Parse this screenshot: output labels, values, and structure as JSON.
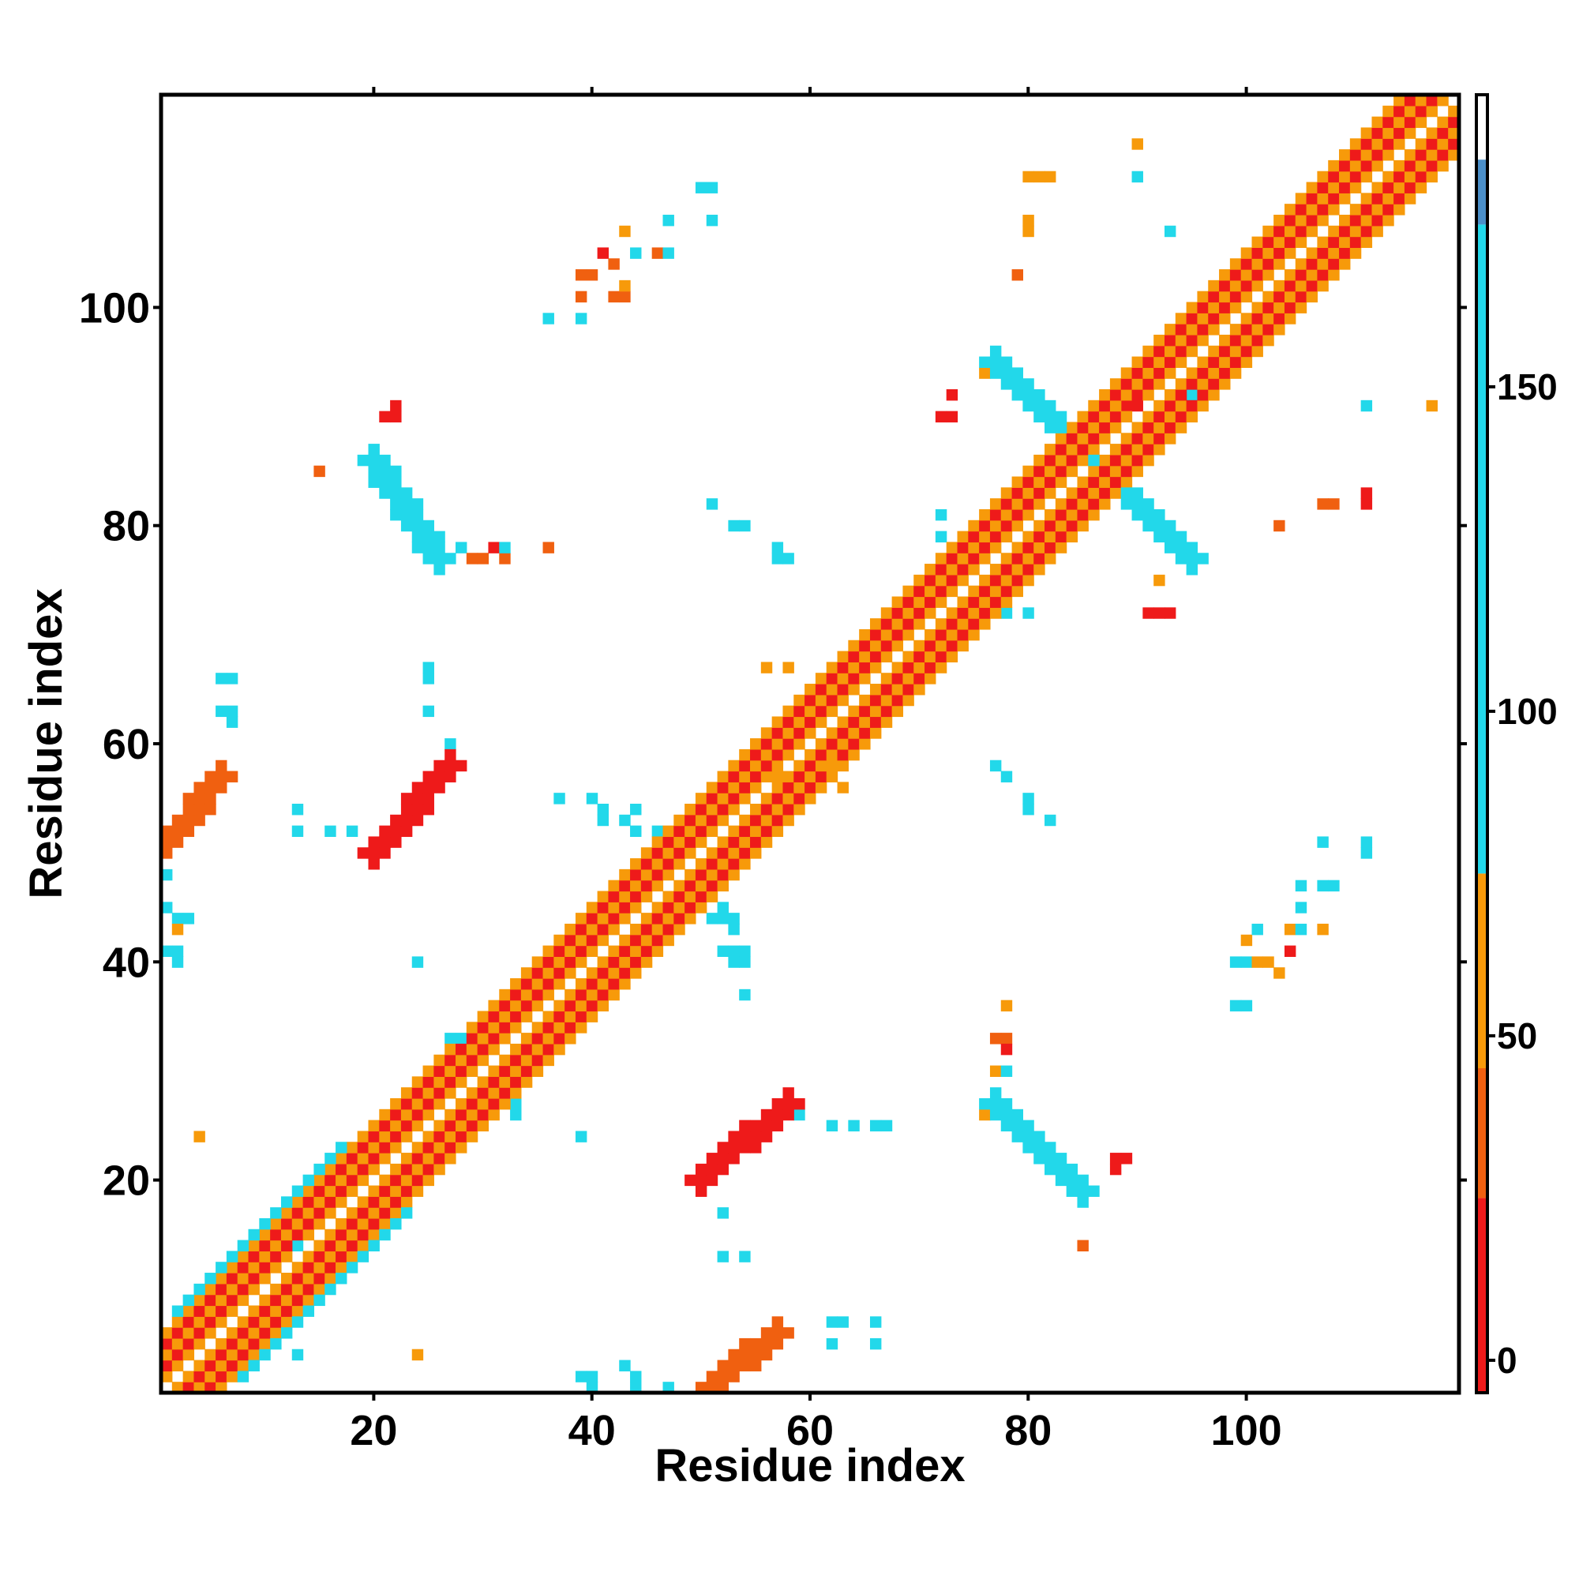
{
  "chart_data": {
    "type": "heatmap",
    "title": "",
    "xlabel": "Residue index",
    "ylabel": "Residue index",
    "xlim": [
      0.5,
      119.5
    ],
    "ylim": [
      0.5,
      119.5
    ],
    "x_ticks": [
      20,
      40,
      60,
      80,
      100
    ],
    "y_ticks": [
      20,
      40,
      60,
      80,
      100
    ],
    "colorbar": {
      "range": [
        -5,
        195
      ],
      "ticks": [
        0,
        50,
        100,
        150
      ],
      "stops": [
        {
          "value": -5,
          "color": "#ee1a1a"
        },
        {
          "value": 25,
          "color": "#ee1a1a"
        },
        {
          "value": 25,
          "color": "#f06010"
        },
        {
          "value": 45,
          "color": "#f06010"
        },
        {
          "value": 45,
          "color": "#f79a0a"
        },
        {
          "value": 75,
          "color": "#f79a0a"
        },
        {
          "value": 75,
          "color": "#22d8ea"
        },
        {
          "value": 175,
          "color": "#22d8ea"
        },
        {
          "value": 175,
          "color": "#4b8fc9"
        },
        {
          "value": 195,
          "color": "#4b8fc9"
        }
      ]
    },
    "bands": [
      {
        "name": "diagonal",
        "from": [
          1,
          1
        ],
        "to": [
          119,
          119
        ],
        "width": 5,
        "pattern": "mixed"
      },
      {
        "name": "sheet-a",
        "from": [
          20,
          86
        ],
        "to": [
          26,
          77
        ],
        "width": 3,
        "value": 170
      },
      {
        "name": "sheet-b",
        "from": [
          20,
          50
        ],
        "to": [
          27,
          58
        ],
        "width": 3,
        "value": 15
      },
      {
        "name": "sheet-c",
        "from": [
          77,
          27
        ],
        "to": [
          85,
          19
        ],
        "width": 3,
        "value": 170
      },
      {
        "name": "sheet-d",
        "from": [
          50,
          20
        ],
        "to": [
          58,
          27
        ],
        "width": 3,
        "value": 15
      },
      {
        "name": "cross-a",
        "from": [
          77,
          95
        ],
        "to": [
          87,
          85
        ],
        "width": 3,
        "value": 170
      },
      {
        "name": "cross-b",
        "from": [
          85,
          87
        ],
        "to": [
          95,
          77
        ],
        "width": 3,
        "value": 170
      },
      {
        "name": "corner-a",
        "from": [
          1,
          51
        ],
        "to": [
          6,
          57
        ],
        "width": 3,
        "value": 30
      },
      {
        "name": "corner-b",
        "from": [
          51,
          1
        ],
        "to": [
          57,
          6
        ],
        "width": 3,
        "value": 30
      },
      {
        "name": "beta-a",
        "from": [
          3,
          8
        ],
        "to": [
          17,
          22
        ],
        "width": 3,
        "value": 110
      },
      {
        "name": "beta-b",
        "from": [
          8,
          3
        ],
        "to": [
          22,
          17
        ],
        "width": 3,
        "value": 110
      }
    ],
    "cells": [
      [
        90,
        115,
        60
      ],
      [
        90,
        112,
        170
      ],
      [
        93,
        107,
        170
      ],
      [
        80,
        112,
        45
      ],
      [
        81,
        112,
        45
      ],
      [
        82,
        112,
        45
      ],
      [
        80,
        107,
        60
      ],
      [
        80,
        108,
        60
      ],
      [
        79,
        103,
        40
      ],
      [
        89,
        91,
        10
      ],
      [
        90,
        91,
        10
      ],
      [
        95,
        92,
        170
      ],
      [
        111,
        91,
        170
      ],
      [
        117,
        91,
        60
      ],
      [
        103,
        80,
        40
      ],
      [
        107,
        82,
        40
      ],
      [
        108,
        82,
        40
      ],
      [
        111,
        82,
        10
      ],
      [
        111,
        83,
        10
      ],
      [
        92,
        75,
        60
      ],
      [
        91,
        72,
        10
      ],
      [
        92,
        72,
        10
      ],
      [
        93,
        72,
        10
      ],
      [
        78,
        72,
        170
      ],
      [
        80,
        72,
        170
      ],
      [
        72,
        90,
        10
      ],
      [
        73,
        90,
        10
      ],
      [
        73,
        92,
        10
      ],
      [
        76,
        94,
        60
      ],
      [
        72,
        81,
        170
      ],
      [
        72,
        79,
        170
      ],
      [
        15,
        85,
        40
      ],
      [
        21,
        90,
        10
      ],
      [
        22,
        90,
        10
      ],
      [
        22,
        91,
        10
      ],
      [
        28,
        78,
        110
      ],
      [
        29,
        77,
        40
      ],
      [
        30,
        77,
        40
      ],
      [
        31,
        78,
        10
      ],
      [
        32,
        77,
        40
      ],
      [
        32,
        78,
        110
      ],
      [
        36,
        78,
        40
      ],
      [
        51,
        82,
        110
      ],
      [
        53,
        80,
        110
      ],
      [
        54,
        80,
        110
      ],
      [
        57,
        78,
        110
      ],
      [
        57,
        77,
        110
      ],
      [
        58,
        77,
        110
      ],
      [
        36,
        99,
        110
      ],
      [
        39,
        99,
        110
      ],
      [
        39,
        101,
        40
      ],
      [
        39,
        103,
        40
      ],
      [
        40,
        103,
        40
      ],
      [
        42,
        101,
        40
      ],
      [
        43,
        101,
        40
      ],
      [
        43,
        102,
        60
      ],
      [
        41,
        105,
        10
      ],
      [
        42,
        104,
        40
      ],
      [
        44,
        105,
        110
      ],
      [
        43,
        107,
        60
      ],
      [
        46,
        105,
        40
      ],
      [
        47,
        105,
        110
      ],
      [
        47,
        108,
        110
      ],
      [
        50,
        111,
        110
      ],
      [
        51,
        111,
        170
      ],
      [
        51,
        108,
        170
      ],
      [
        6,
        66,
        110
      ],
      [
        7,
        66,
        110
      ],
      [
        6,
        63,
        110
      ],
      [
        7,
        63,
        110
      ],
      [
        7,
        62,
        110
      ],
      [
        25,
        66,
        110
      ],
      [
        25,
        67,
        110
      ],
      [
        25,
        63,
        110
      ],
      [
        27,
        60,
        110
      ],
      [
        13,
        54,
        110
      ],
      [
        13,
        52,
        110
      ],
      [
        16,
        52,
        110
      ],
      [
        18,
        52,
        110
      ],
      [
        1,
        48,
        110
      ],
      [
        1,
        45,
        170
      ],
      [
        2,
        44,
        110
      ],
      [
        3,
        44,
        110
      ],
      [
        2,
        43,
        60
      ],
      [
        1,
        41,
        170
      ],
      [
        2,
        41,
        110
      ],
      [
        2,
        40,
        110
      ],
      [
        24,
        40,
        110
      ],
      [
        37,
        55,
        110
      ],
      [
        40,
        55,
        110
      ],
      [
        41,
        54,
        110
      ],
      [
        41,
        53,
        110
      ],
      [
        43,
        53,
        110
      ],
      [
        44,
        54,
        110
      ],
      [
        44,
        52,
        110
      ],
      [
        46,
        52,
        110
      ],
      [
        51,
        44,
        110
      ],
      [
        52,
        44,
        110
      ],
      [
        53,
        44,
        110
      ],
      [
        53,
        43,
        110
      ],
      [
        52,
        45,
        110
      ],
      [
        52,
        41,
        110
      ],
      [
        53,
        41,
        110
      ],
      [
        54,
        41,
        110
      ],
      [
        53,
        40,
        110
      ],
      [
        54,
        40,
        110
      ],
      [
        54,
        37,
        110
      ],
      [
        56,
        67,
        60
      ],
      [
        58,
        67,
        60
      ],
      [
        57,
        57,
        60
      ],
      [
        62,
        58,
        60
      ],
      [
        63,
        58,
        60
      ],
      [
        63,
        56,
        60
      ],
      [
        77,
        58,
        110
      ],
      [
        78,
        57,
        110
      ],
      [
        80,
        55,
        110
      ],
      [
        80,
        54,
        110
      ],
      [
        82,
        53,
        110
      ],
      [
        99,
        40,
        110
      ],
      [
        100,
        40,
        110
      ],
      [
        99,
        36,
        110
      ],
      [
        100,
        36,
        110
      ],
      [
        100,
        42,
        60
      ],
      [
        101,
        43,
        110
      ],
      [
        101,
        40,
        60
      ],
      [
        102,
        40,
        60
      ],
      [
        103,
        39,
        60
      ],
      [
        104,
        41,
        10
      ],
      [
        104,
        43,
        60
      ],
      [
        105,
        43,
        110
      ],
      [
        105,
        45,
        110
      ],
      [
        105,
        47,
        110
      ],
      [
        107,
        43,
        60
      ],
      [
        107,
        47,
        110
      ],
      [
        108,
        47,
        110
      ],
      [
        107,
        51,
        170
      ],
      [
        111,
        51,
        170
      ],
      [
        111,
        50,
        110
      ],
      [
        78,
        36,
        60
      ],
      [
        77,
        33,
        40
      ],
      [
        78,
        33,
        40
      ],
      [
        78,
        32,
        10
      ],
      [
        77,
        30,
        60
      ],
      [
        78,
        30,
        110
      ],
      [
        76,
        26,
        60
      ],
      [
        88,
        22,
        10
      ],
      [
        89,
        22,
        10
      ],
      [
        88,
        21,
        10
      ],
      [
        85,
        14,
        40
      ],
      [
        59,
        26,
        110
      ],
      [
        62,
        25,
        110
      ],
      [
        64,
        25,
        110
      ],
      [
        66,
        25,
        110
      ],
      [
        67,
        25,
        110
      ],
      [
        52,
        17,
        110
      ],
      [
        52,
        13,
        110
      ],
      [
        54,
        13,
        110
      ],
      [
        62,
        7,
        110
      ],
      [
        63,
        7,
        110
      ],
      [
        62,
        5,
        110
      ],
      [
        66,
        7,
        110
      ],
      [
        66,
        5,
        110
      ],
      [
        39,
        2,
        110
      ],
      [
        40,
        2,
        110
      ],
      [
        40,
        1,
        170
      ],
      [
        43,
        3,
        110
      ],
      [
        44,
        2,
        110
      ],
      [
        44,
        1,
        110
      ],
      [
        47,
        1,
        110
      ],
      [
        24,
        4,
        60
      ],
      [
        13,
        4,
        110
      ],
      [
        4,
        24,
        60
      ],
      [
        13,
        14,
        110
      ],
      [
        39,
        24,
        110
      ],
      [
        33,
        27,
        110
      ],
      [
        33,
        26,
        110
      ],
      [
        27,
        33,
        110
      ],
      [
        28,
        33,
        110
      ]
    ]
  }
}
